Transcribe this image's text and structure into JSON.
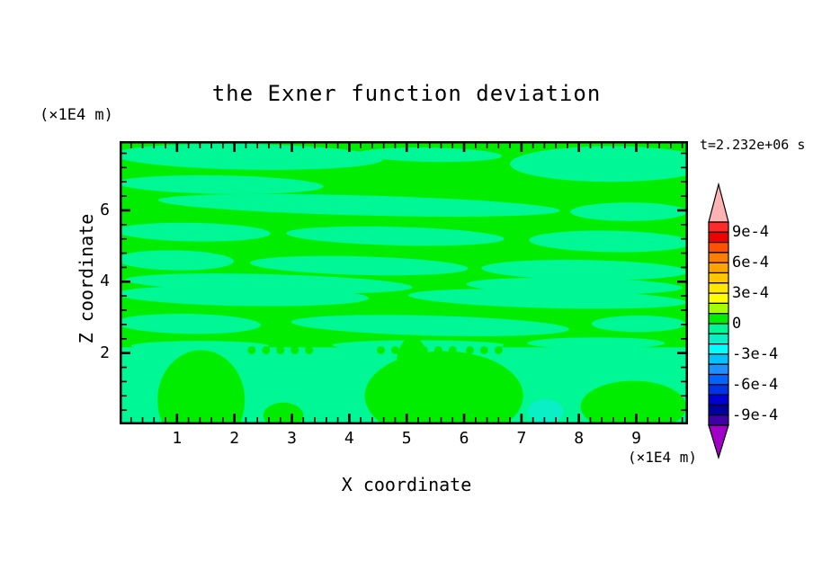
{
  "chart_data": {
    "type": "contour",
    "title": "the Exner function deviation",
    "time_label": "t=2.232e+06 s",
    "xlabel": "X coordinate",
    "ylabel": "Z coordinate",
    "x_unit_label": "(×1E4 m)",
    "y_unit_label": "(×1E4 m)",
    "xlim": [
      0,
      9.9
    ],
    "ylim": [
      0,
      7.94
    ],
    "x_major_ticks": [
      1,
      2,
      3,
      4,
      5,
      6,
      7,
      8,
      9
    ],
    "y_major_ticks": [
      2,
      4,
      6
    ],
    "x_minor_step": 0.2,
    "y_minor_step": 0.4,
    "grid": false,
    "frame_color": "#000000",
    "field_colors": {
      "green": "#00ED00",
      "spring": "#00F795",
      "aqua": "#0AEFC6"
    },
    "field_background": "green",
    "colorbar": {
      "min": -0.001,
      "max": 0.001,
      "step": 0.0001,
      "labels": [
        {
          "text": "9e-4",
          "boundary_index": 1
        },
        {
          "text": "6e-4",
          "boundary_index": 4
        },
        {
          "text": "3e-4",
          "boundary_index": 7
        },
        {
          "text": "0",
          "boundary_index": 10
        },
        {
          "text": "-3e-4",
          "boundary_index": 13
        },
        {
          "text": "-6e-4",
          "boundary_index": 16
        },
        {
          "text": "-9e-4",
          "boundary_index": 19
        }
      ],
      "segment_colors_top_to_bottom": [
        "#FF2B2B",
        "#F00000",
        "#FF5200",
        "#FF7D00",
        "#FFA300",
        "#FFC800",
        "#FFE900",
        "#FFFF00",
        "#A4FF00",
        "#00ED00",
        "#00F795",
        "#0AEFC6",
        "#00FFFF",
        "#00C3FF",
        "#1E90FF",
        "#0064FF",
        "#0032E6",
        "#0000D2",
        "#0000A0",
        "#4000A8"
      ],
      "over_color": "#FFB3B3",
      "under_color": "#A000C8"
    },
    "features": [
      {
        "type": "ellipse",
        "color": "spring",
        "x": 2.24,
        "z": 7.5,
        "rx": 2.35,
        "rz": 0.36,
        "rot": 1
      },
      {
        "type": "ellipse",
        "color": "spring",
        "x": 5.41,
        "z": 7.56,
        "rx": 1.25,
        "rz": 0.2,
        "rot": 1
      },
      {
        "type": "ellipse",
        "color": "spring",
        "x": 8.55,
        "z": 7.3,
        "rx": 1.75,
        "rz": 0.5,
        "rot": 0
      },
      {
        "type": "ellipse",
        "color": "spring",
        "x": 1.75,
        "z": 6.72,
        "rx": 1.8,
        "rz": 0.26,
        "rot": 1
      },
      {
        "type": "ellipse",
        "color": "spring",
        "x": 4.17,
        "z": 6.14,
        "rx": 3.5,
        "rz": 0.28,
        "rot": 1.5
      },
      {
        "type": "ellipse",
        "color": "spring",
        "x": 8.87,
        "z": 5.96,
        "rx": 1.02,
        "rz": 0.26,
        "rot": 0
      },
      {
        "type": "ellipse",
        "color": "spring",
        "x": 1.28,
        "z": 5.39,
        "rx": 1.35,
        "rz": 0.26,
        "rot": 1
      },
      {
        "type": "ellipse",
        "color": "spring",
        "x": 4.8,
        "z": 5.28,
        "rx": 1.9,
        "rz": 0.26,
        "rot": 1.5
      },
      {
        "type": "ellipse",
        "color": "spring",
        "x": 8.55,
        "z": 5.13,
        "rx": 1.42,
        "rz": 0.3,
        "rot": 1
      },
      {
        "type": "ellipse",
        "color": "spring",
        "x": 0.97,
        "z": 4.6,
        "rx": 1.02,
        "rz": 0.28,
        "rot": 1
      },
      {
        "type": "ellipse",
        "color": "spring",
        "x": 4.17,
        "z": 4.45,
        "rx": 1.9,
        "rz": 0.26,
        "rot": 1.5
      },
      {
        "type": "ellipse",
        "color": "spring",
        "x": 8.1,
        "z": 4.33,
        "rx": 1.8,
        "rz": 0.28,
        "rot": 1
      },
      {
        "type": "ellipse",
        "color": "spring",
        "x": 2.6,
        "z": 3.95,
        "rx": 2.5,
        "rz": 0.26,
        "rot": 1.5
      },
      {
        "type": "ellipse",
        "color": "spring",
        "x": 7.92,
        "z": 3.88,
        "rx": 1.88,
        "rz": 0.23,
        "rot": 1
      },
      {
        "type": "ellipse",
        "color": "spring",
        "x": 2.14,
        "z": 3.6,
        "rx": 2.2,
        "rz": 0.28,
        "rot": 1
      },
      {
        "type": "ellipse",
        "color": "spring",
        "x": 7.45,
        "z": 3.52,
        "rx": 2.42,
        "rz": 0.26,
        "rot": 1.5
      },
      {
        "type": "ellipse",
        "color": "spring",
        "x": 1.2,
        "z": 2.82,
        "rx": 1.26,
        "rz": 0.28,
        "rot": 1
      },
      {
        "type": "ellipse",
        "color": "spring",
        "x": 5.41,
        "z": 2.77,
        "rx": 2.42,
        "rz": 0.28,
        "rot": 1.5
      },
      {
        "type": "ellipse",
        "color": "spring",
        "x": 9.04,
        "z": 2.82,
        "rx": 0.82,
        "rz": 0.23,
        "rot": 0
      },
      {
        "type": "rect",
        "color": "spring",
        "x0": 0,
        "z0": 0,
        "x1": 9.9,
        "z1": 2.16
      },
      {
        "type": "ellipse",
        "color": "spring",
        "x": 1.4,
        "z": 2.2,
        "rx": 1.2,
        "rz": 0.14,
        "rot": 0
      },
      {
        "type": "ellipse",
        "color": "spring",
        "x": 5.2,
        "z": 2.22,
        "rx": 1.5,
        "rz": 0.14,
        "rot": 0
      },
      {
        "type": "ellipse",
        "color": "spring",
        "x": 8.3,
        "z": 2.28,
        "rx": 1.2,
        "rz": 0.16,
        "rot": 0
      },
      {
        "type": "ellipse",
        "color": "green",
        "x": 1.42,
        "z": 0.68,
        "rx": 0.76,
        "rz": 1.4,
        "rot": 0
      },
      {
        "type": "ellipse",
        "color": "green",
        "x": 5.65,
        "z": 0.8,
        "rx": 1.38,
        "rz": 1.25,
        "rot": 0
      },
      {
        "type": "ellipse",
        "color": "green",
        "x": 5.1,
        "z": 1.56,
        "rx": 0.29,
        "rz": 0.9,
        "rot": 0
      },
      {
        "type": "ellipse",
        "color": "green",
        "x": 8.95,
        "z": 0.5,
        "rx": 0.92,
        "rz": 0.72,
        "rot": 0
      },
      {
        "type": "ellipse",
        "color": "green",
        "x": 2.85,
        "z": 0.25,
        "rx": 0.35,
        "rz": 0.36,
        "rot": 0
      },
      {
        "type": "dots",
        "color": "green",
        "z": 2.08,
        "r": 0.07,
        "xs": [
          2.3,
          2.55,
          2.8,
          3.05,
          3.3,
          4.55,
          4.8,
          5.05,
          5.3,
          5.55,
          5.8,
          6.1,
          6.35,
          6.6
        ]
      },
      {
        "type": "ellipse",
        "color": "aqua",
        "x": 7.42,
        "z": 0.36,
        "rx": 0.31,
        "rz": 0.34,
        "rot": 0
      }
    ]
  }
}
